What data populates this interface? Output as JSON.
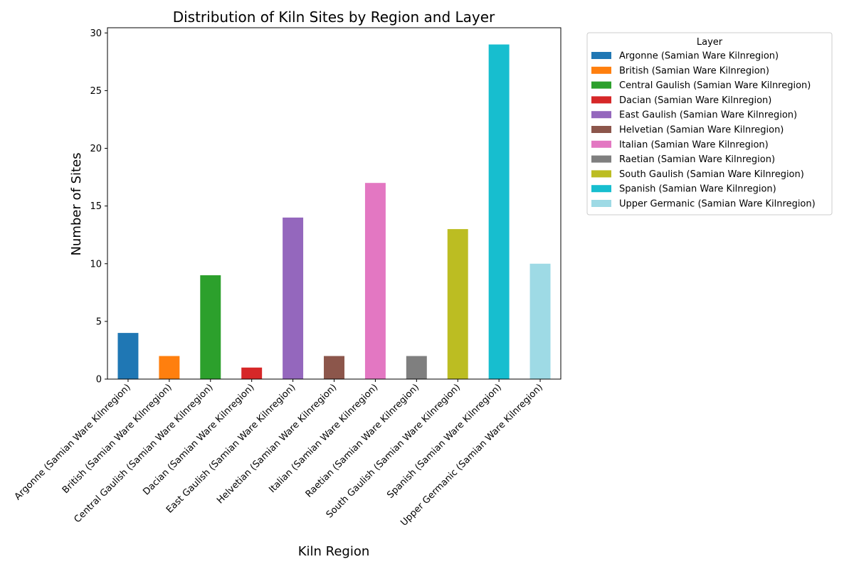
{
  "chart_data": {
    "type": "bar",
    "title": "Distribution of Kiln Sites by Region and Layer",
    "xlabel": "Kiln Region",
    "ylabel": "Number of Sites",
    "ylim": [
      0,
      30.45
    ],
    "yticks": [
      0,
      5,
      10,
      15,
      20,
      25,
      30
    ],
    "categories": [
      "Argonne (Samian Ware Kilnregion)",
      "British (Samian Ware Kilnregion)",
      "Central Gaulish (Samian Ware Kilnregion)",
      "Dacian (Samian Ware Kilnregion)",
      "East Gaulish (Samian Ware Kilnregion)",
      "Helvetian (Samian Ware Kilnregion)",
      "Italian (Samian Ware Kilnregion)",
      "Raetian (Samian Ware Kilnregion)",
      "South Gaulish (Samian Ware Kilnregion)",
      "Spanish (Samian Ware Kilnregion)",
      "Upper Germanic (Samian Ware Kilnregion)"
    ],
    "values": [
      4,
      2,
      9,
      1,
      14,
      2,
      17,
      2,
      13,
      29,
      10
    ],
    "colors": [
      "#1f77b4",
      "#ff7f0e",
      "#2ca02c",
      "#d62728",
      "#9467bd",
      "#8c564b",
      "#e377c2",
      "#7f7f7f",
      "#bcbd22",
      "#17becf",
      "#9edae5"
    ],
    "grid": false,
    "legend": {
      "title": "Layer",
      "placement": "outside-right-top",
      "entries": [
        "Argonne (Samian Ware Kilnregion)",
        "British (Samian Ware Kilnregion)",
        "Central Gaulish (Samian Ware Kilnregion)",
        "Dacian (Samian Ware Kilnregion)",
        "East Gaulish (Samian Ware Kilnregion)",
        "Helvetian (Samian Ware Kilnregion)",
        "Italian (Samian Ware Kilnregion)",
        "Raetian (Samian Ware Kilnregion)",
        "South Gaulish (Samian Ware Kilnregion)",
        "Spanish (Samian Ware Kilnregion)",
        "Upper Germanic (Samian Ware Kilnregion)"
      ]
    }
  }
}
